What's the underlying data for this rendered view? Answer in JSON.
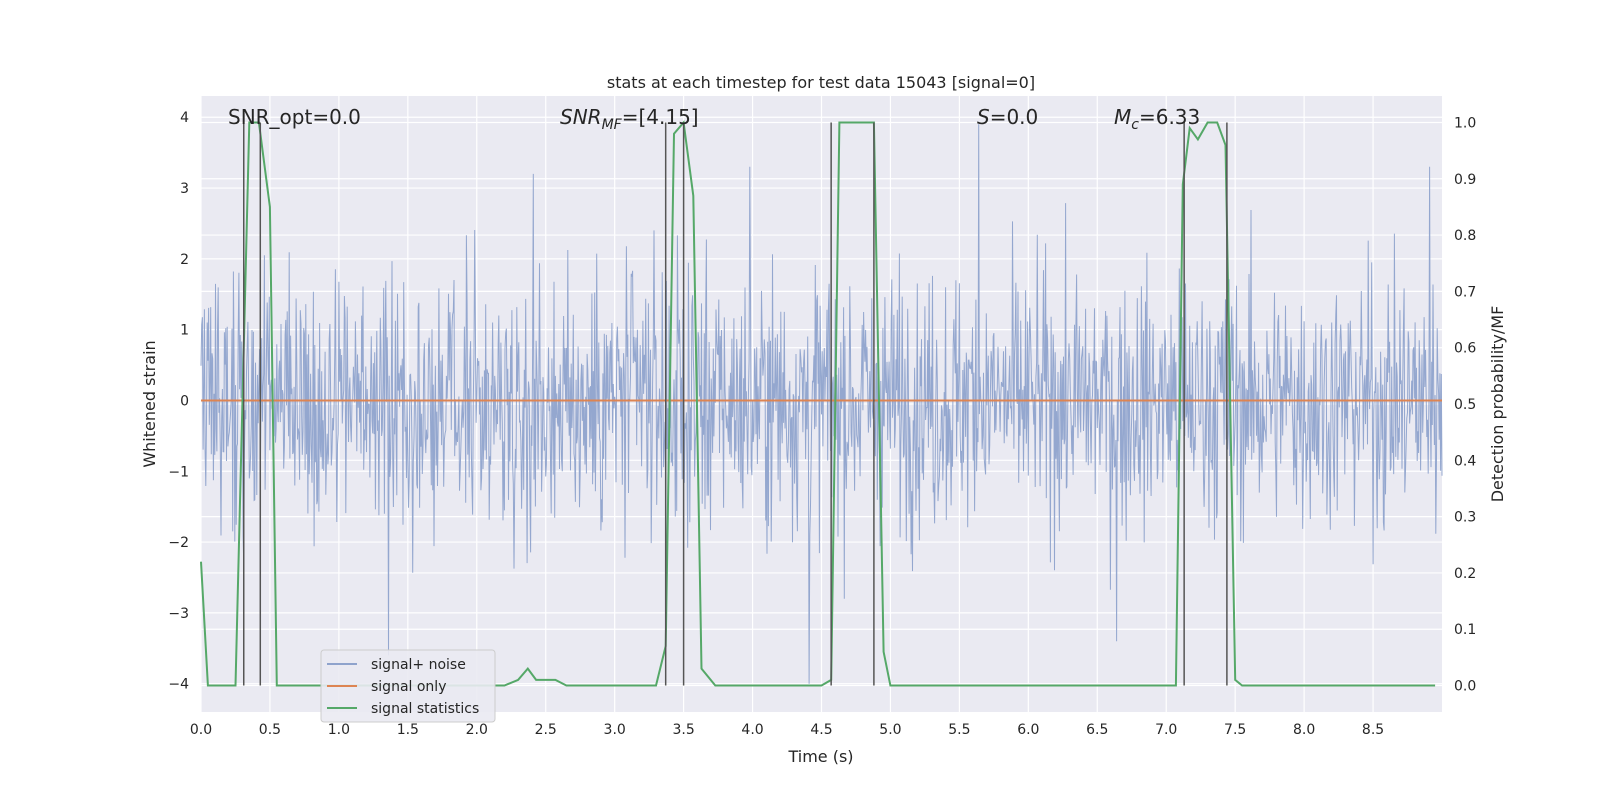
{
  "chart_data": {
    "type": "line",
    "title": "stats at each timestep for test data 15043 [signal=0]",
    "xlabel": "Time (s)",
    "ylabel": "Whitened strain",
    "y2label": "Detection probability/MF",
    "xlim": [
      0.0,
      9.0
    ],
    "ylim": [
      -4.4,
      4.3
    ],
    "y2lim": [
      -0.047,
      1.047
    ],
    "xticks": [
      0.0,
      0.5,
      1.0,
      1.5,
      2.0,
      2.5,
      3.0,
      3.5,
      4.0,
      4.5,
      5.0,
      5.5,
      6.0,
      6.5,
      7.0,
      7.5,
      8.0,
      8.5
    ],
    "xtick_labels": [
      "0.0",
      "0.5",
      "1.0",
      "1.5",
      "2.0",
      "2.5",
      "3.0",
      "3.5",
      "4.0",
      "4.5",
      "5.0",
      "5.5",
      "6.0",
      "6.5",
      "7.0",
      "7.5",
      "8.0",
      "8.5"
    ],
    "yticks": [
      -4,
      -3,
      -2,
      -1,
      0,
      1,
      2,
      3,
      4
    ],
    "ytick_labels": [
      "−4",
      "−3",
      "−2",
      "−1",
      "0",
      "1",
      "2",
      "3",
      "4"
    ],
    "y2ticks": [
      0.0,
      0.1,
      0.2,
      0.3,
      0.4,
      0.5,
      0.6,
      0.7,
      0.8,
      0.9,
      1.0
    ],
    "y2tick_labels": [
      "0.0",
      "0.1",
      "0.2",
      "0.3",
      "0.4",
      "0.5",
      "0.6",
      "0.7",
      "0.8",
      "0.9",
      "1.0"
    ],
    "grid": true,
    "legend_position": "lower-left",
    "annotations": {
      "snr_opt": "SNR_opt=0.0",
      "snr_mf_pre": "SNR",
      "snr_mf_sub": "MF",
      "snr_mf_val": "=[4.15]",
      "s_pre": "S",
      "s_val": "=0.0",
      "mc_pre": "M",
      "mc_sub": "c",
      "mc_val": "=6.33"
    },
    "series": [
      {
        "name": "signal+ noise",
        "color": "#8fa3cc",
        "axis": "left",
        "description": "whitened strain noise, approx. ±2 envelope with peaks near ±3.5",
        "envelope_peaks": [
          [
            1.36,
            -3.6
          ],
          [
            2.41,
            3.2
          ],
          [
            3.98,
            3.3
          ],
          [
            4.41,
            -4.0
          ],
          [
            5.64,
            3.9
          ],
          [
            6.64,
            -3.4
          ],
          [
            8.91,
            3.3
          ]
        ]
      },
      {
        "name": "signal only",
        "color": "#dd8452",
        "axis": "left",
        "x": [
          0.0,
          9.0
        ],
        "y": [
          0.0,
          0.0
        ]
      },
      {
        "name": "signal statistics",
        "color": "#55a868",
        "axis": "right",
        "x": [
          0.0,
          0.05,
          0.25,
          0.35,
          0.42,
          0.5,
          0.55,
          1.0,
          2.2,
          2.3,
          2.37,
          2.43,
          2.5,
          2.57,
          2.65,
          3.3,
          3.37,
          3.43,
          3.5,
          3.57,
          3.63,
          3.73,
          4.5,
          4.57,
          4.63,
          4.88,
          4.95,
          5.0,
          5.5,
          6.5,
          7.07,
          7.12,
          7.17,
          7.23,
          7.3,
          7.37,
          7.43,
          7.5,
          7.55,
          8.95
        ],
        "y": [
          0.22,
          0.0,
          0.0,
          1.0,
          1.0,
          0.85,
          0.0,
          0.0,
          0.0,
          0.01,
          0.03,
          0.01,
          0.01,
          0.01,
          0.0,
          0.0,
          0.07,
          0.98,
          1.0,
          0.87,
          0.03,
          0.0,
          0.0,
          0.01,
          1.0,
          1.0,
          0.06,
          0.0,
          0.0,
          0.0,
          0.0,
          0.89,
          0.99,
          0.97,
          1.0,
          1.0,
          0.96,
          0.01,
          0.0,
          0.0
        ]
      }
    ],
    "vlines": [
      0.31,
      0.43,
      3.37,
      3.5,
      4.57,
      4.88,
      7.13,
      7.44
    ],
    "vline_color": "#555555"
  }
}
